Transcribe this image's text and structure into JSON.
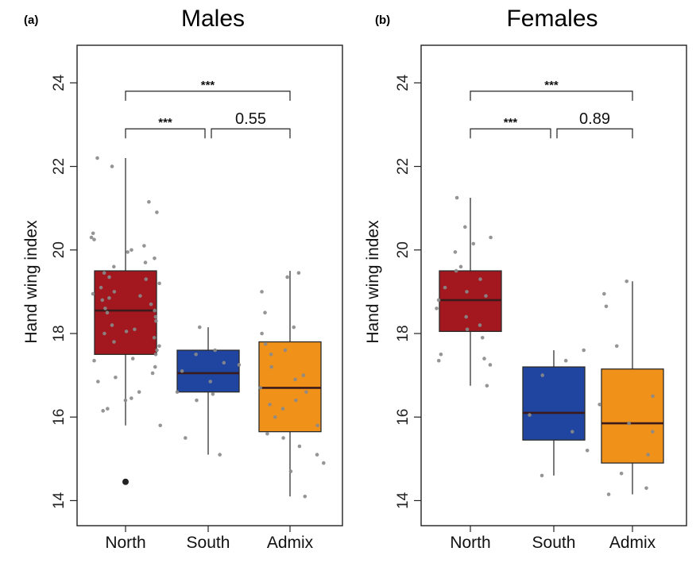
{
  "chart_data": [
    {
      "type": "box",
      "panel": "(a)",
      "title": "Males",
      "xlabel": "",
      "ylabel": "Hand wing index",
      "ylim": [
        13.4,
        24.9
      ],
      "yticks": [
        14,
        16,
        18,
        20,
        22,
        24
      ],
      "categories": [
        "North",
        "South",
        "Admix"
      ],
      "colors": [
        "#a3171f",
        "#1f45a0",
        "#f0921a"
      ],
      "boxes": [
        {
          "name": "North",
          "q1": 17.5,
          "median": 18.55,
          "q3": 19.5,
          "whisker_low": 15.8,
          "whisker_high": 22.2,
          "outliers": [
            14.45
          ]
        },
        {
          "name": "South",
          "q1": 16.6,
          "median": 17.05,
          "q3": 17.6,
          "whisker_low": 15.1,
          "whisker_high": 18.15,
          "outliers": []
        },
        {
          "name": "Admix",
          "q1": 15.65,
          "median": 16.7,
          "q3": 17.8,
          "whisker_low": 14.1,
          "whisker_high": 19.5,
          "outliers": []
        }
      ],
      "jitter_points": [
        {
          "category": "North",
          "values": [
            22.2,
            21.15,
            20.9,
            20.4,
            20.3,
            20.25,
            20.1,
            20.0,
            19.8,
            19.7,
            19.6,
            19.45,
            19.35,
            19.3,
            19.2,
            19.1,
            19.0,
            18.95,
            18.85,
            18.8,
            18.7,
            18.6,
            18.55,
            18.5,
            18.4,
            18.3,
            18.2,
            18.1,
            18.05,
            18.0,
            17.9,
            17.8,
            17.7,
            17.6,
            17.5,
            17.35,
            17.2,
            17.05,
            16.95,
            16.85,
            16.6,
            16.45,
            16.2,
            16.15,
            15.8,
            22.0,
            19.95,
            18.9,
            17.4,
            16.4
          ]
        },
        {
          "category": "South",
          "values": [
            18.15,
            17.6,
            17.5,
            17.3,
            17.1,
            16.85,
            16.6,
            16.55,
            15.5,
            15.1,
            17.25,
            16.4
          ]
        },
        {
          "category": "Admix",
          "values": [
            19.45,
            19.35,
            19.0,
            18.5,
            18.15,
            18.0,
            17.75,
            17.6,
            17.5,
            17.2,
            16.9,
            16.7,
            16.6,
            16.4,
            16.2,
            16.0,
            15.8,
            15.6,
            15.5,
            15.3,
            15.1,
            14.9,
            14.7,
            14.1,
            17.0,
            16.3
          ]
        }
      ],
      "comparisons": [
        {
          "from": "North",
          "to": "Admix",
          "label": "***",
          "y": 23.8
        },
        {
          "from": "North",
          "to": "South",
          "label": "***",
          "y": 22.9
        },
        {
          "from": "South",
          "to": "Admix",
          "label": "0.55",
          "y": 22.9
        }
      ]
    },
    {
      "type": "box",
      "panel": "(b)",
      "title": "Females",
      "xlabel": "",
      "ylabel": "Hand wing index",
      "ylim": [
        13.4,
        24.9
      ],
      "yticks": [
        14,
        16,
        18,
        20,
        22,
        24
      ],
      "categories": [
        "North",
        "South",
        "Admix"
      ],
      "colors": [
        "#a3171f",
        "#1f45a0",
        "#f0921a"
      ],
      "boxes": [
        {
          "name": "North",
          "q1": 18.05,
          "median": 18.8,
          "q3": 19.5,
          "whisker_low": 16.75,
          "whisker_high": 21.25,
          "outliers": []
        },
        {
          "name": "South",
          "q1": 15.45,
          "median": 16.1,
          "q3": 17.2,
          "whisker_low": 14.6,
          "whisker_high": 17.6,
          "outliers": []
        },
        {
          "name": "Admix",
          "q1": 14.9,
          "median": 15.85,
          "q3": 17.15,
          "whisker_low": 14.15,
          "whisker_high": 19.25,
          "outliers": []
        }
      ],
      "jitter_points": [
        {
          "category": "North",
          "values": [
            21.25,
            20.55,
            20.3,
            20.15,
            19.95,
            19.6,
            19.5,
            19.3,
            19.1,
            19.0,
            18.9,
            18.8,
            18.6,
            18.4,
            18.2,
            18.1,
            17.9,
            17.5,
            17.4,
            17.35,
            17.25,
            16.75
          ]
        },
        {
          "category": "South",
          "values": [
            17.6,
            17.35,
            17.0,
            16.05,
            15.65,
            15.2,
            14.6
          ]
        },
        {
          "category": "Admix",
          "values": [
            19.25,
            18.95,
            18.65,
            17.7,
            16.5,
            16.3,
            15.85,
            15.65,
            15.1,
            14.65,
            14.3,
            14.15
          ]
        }
      ],
      "comparisons": [
        {
          "from": "North",
          "to": "Admix",
          "label": "***",
          "y": 23.8
        },
        {
          "from": "North",
          "to": "South",
          "label": "***",
          "y": 22.9
        },
        {
          "from": "South",
          "to": "Admix",
          "label": "0.89",
          "y": 22.9
        }
      ]
    }
  ]
}
